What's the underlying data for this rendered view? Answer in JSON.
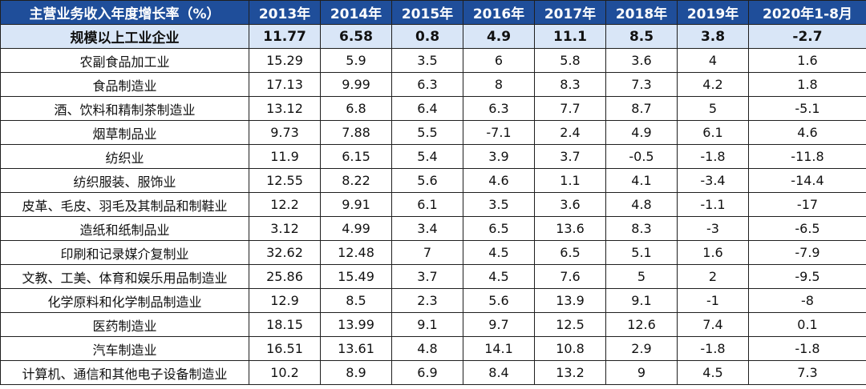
{
  "chart_data": {
    "type": "table",
    "header": [
      "主营业务收入年度增长率（%）",
      "2013年",
      "2014年",
      "2015年",
      "2016年",
      "2017年",
      "2018年",
      "2019年",
      "2020年1-8月"
    ],
    "rows": [
      {
        "label": "规模以上工业企业",
        "values": [
          "11.77",
          "6.58",
          "0.8",
          "4.9",
          "11.1",
          "8.5",
          "3.8",
          "-2.7"
        ],
        "highlight": true
      },
      {
        "label": "农副食品加工业",
        "values": [
          "15.29",
          "5.9",
          "3.5",
          "6",
          "5.8",
          "3.6",
          "4",
          "1.6"
        ]
      },
      {
        "label": "食品制造业",
        "values": [
          "17.13",
          "9.99",
          "6.3",
          "8",
          "8.3",
          "7.3",
          "4.2",
          "1.8"
        ]
      },
      {
        "label": "酒、饮料和精制茶制造业",
        "values": [
          "13.12",
          "6.8",
          "6.4",
          "6.3",
          "7.7",
          "8.7",
          "5",
          "-5.1"
        ]
      },
      {
        "label": "烟草制品业",
        "values": [
          "9.73",
          "7.88",
          "5.5",
          "-7.1",
          "2.4",
          "4.9",
          "6.1",
          "4.6"
        ]
      },
      {
        "label": "纺织业",
        "values": [
          "11.9",
          "6.15",
          "5.4",
          "3.9",
          "3.7",
          "-0.5",
          "-1.8",
          "-11.8"
        ]
      },
      {
        "label": "纺织服装、服饰业",
        "values": [
          "12.55",
          "8.22",
          "5.6",
          "4.6",
          "1.1",
          "4.1",
          "-3.4",
          "-14.4"
        ]
      },
      {
        "label": "皮革、毛皮、羽毛及其制品和制鞋业",
        "values": [
          "12.2",
          "9.91",
          "6.1",
          "3.5",
          "3.6",
          "4.8",
          "-1.1",
          "-17"
        ]
      },
      {
        "label": "造纸和纸制品业",
        "values": [
          "3.12",
          "4.99",
          "3.4",
          "6.5",
          "13.6",
          "8.3",
          "-3",
          "-6.5"
        ]
      },
      {
        "label": "印刷和记录媒介复制业",
        "values": [
          "32.62",
          "12.48",
          "7",
          "4.5",
          "6.5",
          "5.1",
          "1.6",
          "-7.9"
        ]
      },
      {
        "label": "文教、工美、体育和娱乐用品制造业",
        "values": [
          "25.86",
          "15.49",
          "3.7",
          "4.5",
          "7.6",
          "5",
          "2",
          "-9.5"
        ]
      },
      {
        "label": "化学原料和化学制品制造业",
        "values": [
          "12.9",
          "8.5",
          "2.3",
          "5.6",
          "13.9",
          "9.1",
          "-1",
          "-8"
        ]
      },
      {
        "label": "医药制造业",
        "values": [
          "18.15",
          "13.99",
          "9.1",
          "9.7",
          "12.5",
          "12.6",
          "7.4",
          "0.1"
        ]
      },
      {
        "label": "汽车制造业",
        "values": [
          "16.51",
          "13.61",
          "4.8",
          "14.1",
          "10.8",
          "2.9",
          "-1.8",
          "-1.8"
        ]
      },
      {
        "label": "计算机、通信和其他电子设备制造业",
        "values": [
          "10.2",
          "8.9",
          "6.9",
          "8.4",
          "13.2",
          "9",
          "4.5",
          "7.3"
        ]
      }
    ],
    "header_color": "#1f4e9a",
    "highlight_color": "#d9e6f7"
  }
}
